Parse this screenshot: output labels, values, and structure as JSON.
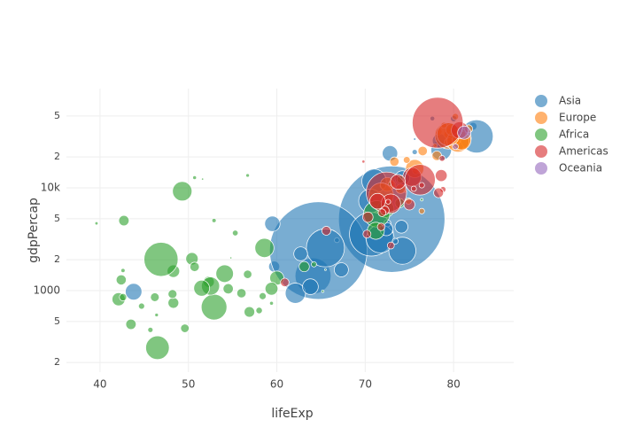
{
  "chart_data": {
    "type": "scatter",
    "x_label": "lifeExp",
    "y_label": "gdpPercap",
    "xlim": [
      36.2,
      86.8
    ],
    "xticks": [
      40,
      50,
      60,
      70,
      80
    ],
    "ylim": [
      161,
      92400
    ],
    "log_y": true,
    "grid": true,
    "legend": "right",
    "yticks": [
      {
        "value": 200,
        "label": "2"
      },
      {
        "value": 500,
        "label": "5"
      },
      1000,
      {
        "value": 2000,
        "label": "2"
      },
      {
        "value": 5000,
        "label": "5"
      },
      {
        "value": 10000,
        "label": "10k"
      },
      {
        "value": 20000,
        "label": "2"
      },
      {
        "value": 50000,
        "label": "5"
      }
    ],
    "series": [
      {
        "name": "Asia",
        "color": "#1f77b4",
        "x": [
          43.8,
          75.6,
          64.1,
          59.7,
          73.0,
          82.2,
          64.7,
          70.7,
          71.0,
          59.5,
          80.7,
          82.6,
          72.5,
          67.3,
          78.6,
          77.6,
          72.0,
          74.2,
          66.8,
          62.1,
          63.8,
          75.6,
          65.5,
          71.7,
          72.8,
          80.0,
          72.4,
          74.1,
          78.4,
          70.6,
          74.2,
          73.4,
          62.7
        ],
        "y": [
          975,
          29796,
          1391,
          1714,
          4959,
          39725,
          2452,
          3541,
          11606,
          4471,
          25523,
          31656,
          4519,
          1593,
          23348,
          47307,
          10461,
          12452,
          3096,
          944,
          1091,
          22316,
          2606,
          3190,
          21655,
          47143,
          3970,
          4185,
          28718,
          7458,
          2442,
          3025,
          2281
        ],
        "size": [
          31.9,
          0.71,
          150.4,
          14.1,
          1318.7,
          6.98,
          1110.4,
          223.5,
          69.5,
          27.5,
          6.43,
          127.5,
          6.05,
          23.3,
          49.0,
          2.5,
          3.92,
          24.8,
          2.87,
          47.8,
          28.9,
          3.2,
          169.3,
          91.1,
          27.6,
          4.55,
          20.4,
          19.3,
          23.2,
          65.1,
          85.3,
          4.02,
          22.2
        ]
      },
      {
        "name": "Europe",
        "color": "#ff7f0e",
        "x": [
          76.4,
          79.8,
          79.4,
          74.9,
          73.0,
          75.7,
          76.5,
          78.3,
          79.3,
          80.7,
          79.4,
          79.5,
          73.3,
          81.8,
          78.9,
          80.5,
          74.5,
          79.8,
          80.2,
          75.6,
          78.1,
          72.5,
          74.0,
          74.7,
          77.9,
          80.9,
          80.9,
          81.7,
          71.8,
          79.4
        ],
        "y": [
          5937,
          36126,
          33693,
          7446,
          10681,
          14619,
          22833,
          35278,
          33207,
          30470,
          32170,
          27538,
          18009,
          36181,
          40676,
          28570,
          9254,
          36798,
          49357,
          15390,
          20510,
          10808,
          9787,
          18678,
          25768,
          28821,
          33860,
          37506,
          8458,
          33203
        ],
        "size": [
          3.6,
          8.2,
          10.4,
          4.55,
          7.32,
          4.49,
          10.2,
          5.47,
          5.24,
          61.1,
          82.4,
          10.7,
          9.96,
          0.3,
          4.1,
          58.1,
          0.68,
          16.6,
          4.63,
          38.5,
          10.6,
          22.3,
          10.2,
          5.45,
          2.0,
          40.4,
          9.03,
          7.55,
          71.2,
          60.8
        ]
      },
      {
        "name": "Africa",
        "color": "#2ca02c",
        "x": [
          72.3,
          42.7,
          56.7,
          50.7,
          52.3,
          49.6,
          50.4,
          44.7,
          50.7,
          65.2,
          46.5,
          55.3,
          48.3,
          54.8,
          71.3,
          51.6,
          58.0,
          52.9,
          56.7,
          59.4,
          60.0,
          56.0,
          46.4,
          54.1,
          42.6,
          45.7,
          74.0,
          59.4,
          48.3,
          54.5,
          64.2,
          72.8,
          71.2,
          42.1,
          52.9,
          56.9,
          46.9,
          76.4,
          46.2,
          65.5,
          63.1,
          42.6,
          48.2,
          49.3,
          58.6,
          39.6,
          52.5,
          58.4,
          73.9,
          51.5,
          42.4,
          43.5
        ],
        "y": [
          6223,
          4797,
          1441,
          12570,
          1217,
          430,
          2042,
          706,
          1704,
          986,
          278,
          3633,
          1545,
          2082,
          5581,
          12154,
          641,
          691,
          13206,
          753,
          1327,
          943,
          579,
          1463,
          1569,
          415,
          12057,
          1044,
          759,
          1042,
          1803,
          10957,
          3820,
          824,
          4811,
          620,
          2014,
          7670,
          863,
          1598,
          1712,
          863,
          926,
          9270,
          2602,
          4513,
          1107,
          883,
          7093,
          1056,
          1271,
          470
        ],
        "size": [
          33.3,
          12.4,
          8.08,
          1.64,
          14.3,
          8.39,
          17.7,
          4.37,
          10.2,
          0.71,
          64.6,
          3.8,
          18.0,
          0.5,
          80.3,
          0.55,
          4.9,
          76.5,
          1.45,
          1.69,
          22.9,
          9.9,
          1.47,
          35.6,
          2.0,
          3.19,
          6.04,
          19.2,
          13.3,
          12.0,
          3.27,
          1.25,
          33.8,
          19.95,
          2.06,
          12.9,
          135.0,
          0.8,
          8.86,
          0.2,
          12.3,
          6.14,
          9.12,
          44.0,
          42.3,
          1.13,
          38.1,
          5.7,
          10.3,
          29.2,
          11.7,
          12.3
        ]
      },
      {
        "name": "Americas",
        "color": "#d62728",
        "x": [
          75.3,
          65.6,
          72.4,
          80.7,
          78.6,
          72.9,
          78.8,
          78.3,
          72.2,
          75.0,
          71.9,
          70.3,
          60.9,
          70.2,
          72.6,
          76.2,
          72.9,
          75.5,
          71.8,
          71.4,
          78.7,
          69.8,
          78.2,
          76.4,
          73.7
        ],
        "y": [
          12779,
          3822,
          9066,
          36319,
          13172,
          7007,
          9645,
          8948,
          6025,
          6873,
          5728,
          5186,
          1202,
          3548,
          7321,
          11978,
          2749,
          9809,
          4173,
          7409,
          19329,
          18009,
          42952,
          10611,
          11416
        ],
        "size": [
          40.3,
          9.1,
          190.0,
          33.4,
          16.3,
          44.2,
          4.13,
          11.4,
          9.3,
          13.8,
          6.94,
          12.6,
          8.5,
          7.48,
          2.78,
          108.7,
          5.68,
          3.24,
          6.67,
          28.7,
          3.94,
          1.06,
          301.1,
          3.45,
          26.1
        ]
      },
      {
        "name": "Oceania",
        "color": "#9467bd",
        "x": [
          81.2,
          80.2
        ],
        "y": [
          34435,
          25185
        ],
        "size": [
          20.4,
          4.12
        ]
      }
    ]
  }
}
